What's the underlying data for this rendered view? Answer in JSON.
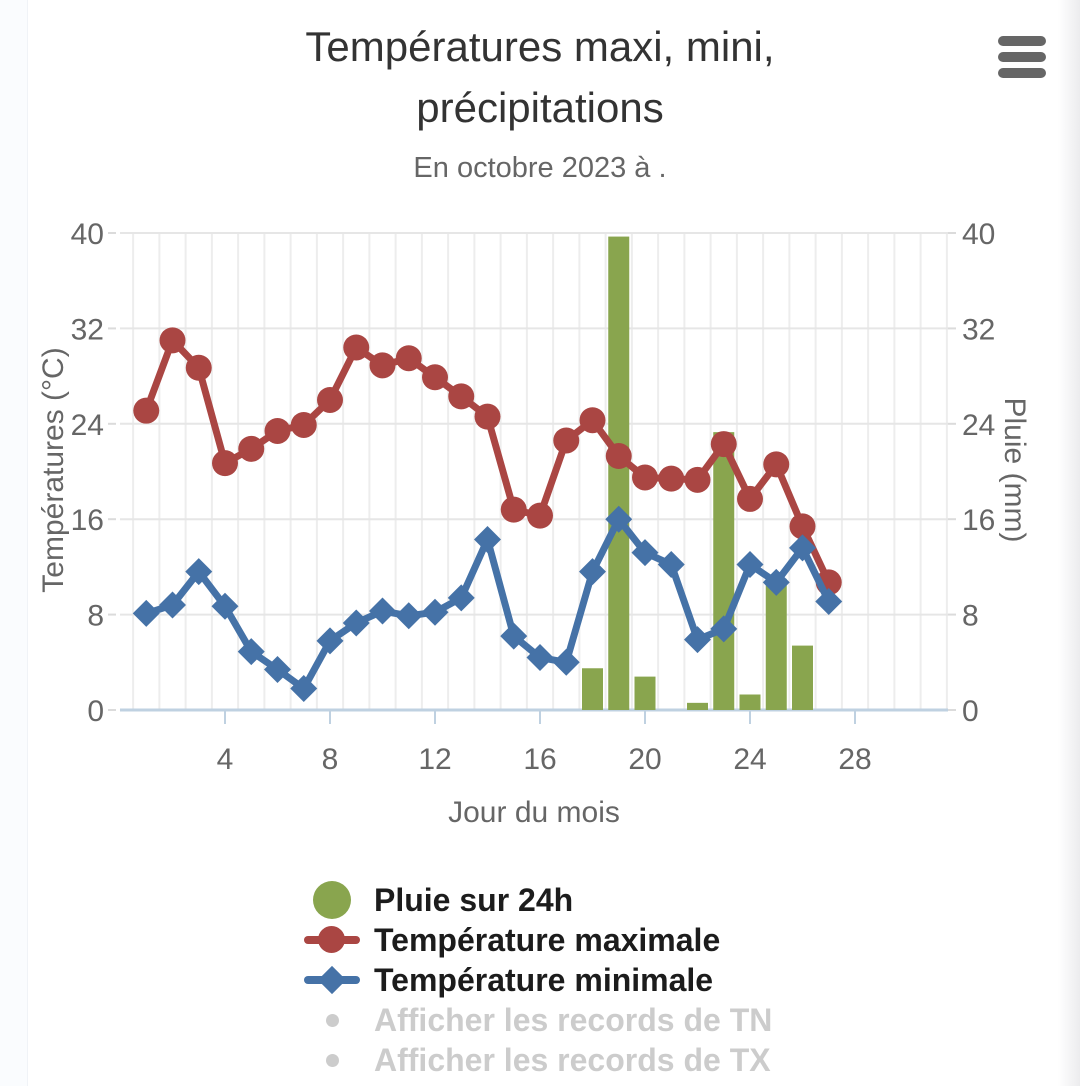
{
  "title": "Températures maxi, mini, précipitations",
  "subtitle": "En octobre 2023 à .",
  "menu": {
    "icon": "hamburger-icon"
  },
  "chart_data": {
    "type": "mixed",
    "xlabel": "Jour du mois",
    "ylabel_left": "Températures (°C)",
    "ylabel_right": "Pluie (mm)",
    "xlim": [
      0,
      31.5
    ],
    "ylim_left": [
      0,
      40
    ],
    "ylim_right": [
      0,
      40
    ],
    "xticks": [
      4,
      8,
      12,
      16,
      20,
      24,
      28
    ],
    "yticks": [
      0,
      8,
      16,
      24,
      32,
      40
    ],
    "grid": true,
    "legend_position": "bottom",
    "days": [
      1,
      2,
      3,
      4,
      5,
      6,
      7,
      8,
      9,
      10,
      11,
      12,
      13,
      14,
      15,
      16,
      17,
      18,
      19,
      20,
      21,
      22,
      23,
      24,
      25,
      26,
      27
    ],
    "series": [
      {
        "name": "Pluie sur 24h",
        "type": "bar",
        "axis": "right",
        "color": "#89A54E",
        "values": [
          0,
          0,
          0,
          0,
          0,
          0,
          0,
          0,
          0,
          0,
          0,
          0,
          0,
          0,
          0,
          0,
          0,
          3.5,
          39.7,
          2.8,
          0,
          0.6,
          23.3,
          1.3,
          11,
          5.4,
          0
        ]
      },
      {
        "name": "Température maximale",
        "type": "line",
        "marker": "circle",
        "axis": "left",
        "color": "#AA4643",
        "values": [
          25.1,
          31,
          28.7,
          20.7,
          21.9,
          23.4,
          23.9,
          26,
          30.4,
          28.9,
          29.5,
          27.9,
          26.3,
          24.6,
          16.8,
          16.3,
          22.6,
          24.3,
          21.3,
          19.5,
          19.4,
          19.3,
          22.3,
          17.7,
          20.6,
          15.4,
          10.7
        ]
      },
      {
        "name": "Température minimale",
        "type": "line",
        "marker": "diamond",
        "axis": "left",
        "color": "#4572A7",
        "values": [
          8.1,
          8.8,
          11.6,
          8.7,
          4.9,
          3.4,
          1.8,
          5.8,
          7.3,
          8.3,
          7.9,
          8.2,
          9.4,
          14.3,
          6.2,
          4.4,
          4,
          11.6,
          16,
          13.2,
          12.2,
          5.9,
          6.8,
          12.2,
          10.7,
          13.6,
          9.1
        ]
      }
    ],
    "legend_disabled": [
      {
        "label": "Afficher les records de TN"
      },
      {
        "label": "Afficher les records de TX"
      }
    ]
  }
}
